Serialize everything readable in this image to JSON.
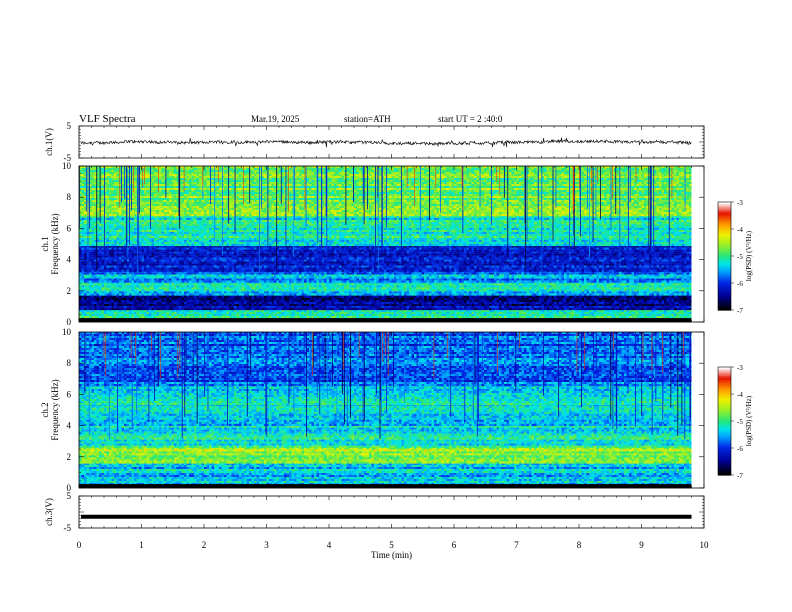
{
  "header": {
    "title": "VLF  Spectra",
    "date": "Mar.19, 2025",
    "station": "station=ATH",
    "start": "start  UT  =   2  :40:0"
  },
  "colorbar": {
    "ticks": [
      "-3",
      "-4",
      "-5",
      "-6",
      "-7"
    ],
    "label": "log(PSD) (V²/Hz)"
  },
  "chart_data": [
    {
      "type": "line",
      "panel": "ch1-waveform",
      "ylabel": "ch.1(V)",
      "yticks": [
        "5",
        "-5"
      ],
      "ylim": [
        -5,
        5
      ],
      "x_range_min": [
        0,
        9.8
      ],
      "series": [
        {
          "values_description": "noisy broadband waveform around -0.5 V with spikes reaching about ±1.5 V"
        }
      ]
    },
    {
      "type": "heatmap",
      "panel": "ch1-spectrogram",
      "ylabel_line1": "ch.1",
      "ylabel_line2": "Frequency (kHz)",
      "yticks": [
        "0",
        "2",
        "4",
        "6",
        "8",
        "10"
      ],
      "ylim": [
        0,
        10
      ],
      "xlim": [
        0,
        10
      ],
      "z_range": [
        -7,
        -3
      ],
      "bands_khz": [
        {
          "from": 0.0,
          "to": 0.25,
          "level": -7
        },
        {
          "from": 0.25,
          "to": 0.9,
          "level": -5
        },
        {
          "from": 0.9,
          "to": 1.8,
          "level": -6.4
        },
        {
          "from": 1.8,
          "to": 2.6,
          "level": -5.3
        },
        {
          "from": 2.6,
          "to": 3.3,
          "level": -5.6
        },
        {
          "from": 3.3,
          "to": 4.9,
          "level": -6.2
        },
        {
          "from": 4.9,
          "to": 6.8,
          "level": -5.2
        },
        {
          "from": 6.8,
          "to": 10.0,
          "level": -4.8
        }
      ]
    },
    {
      "type": "heatmap",
      "panel": "ch2-spectrogram",
      "ylabel_line1": "ch.2",
      "ylabel_line2": "Frequency (kHz)",
      "yticks": [
        "0",
        "2",
        "4",
        "6",
        "8",
        "10"
      ],
      "ylim": [
        0,
        10
      ],
      "xlim": [
        0,
        10
      ],
      "z_range": [
        -7,
        -3
      ],
      "bands_khz": [
        {
          "from": 0.0,
          "to": 0.25,
          "level": -7
        },
        {
          "from": 0.25,
          "to": 1.6,
          "level": -5.4
        },
        {
          "from": 1.6,
          "to": 2.6,
          "level": -4.6
        },
        {
          "from": 2.6,
          "to": 4.0,
          "level": -5.2
        },
        {
          "from": 4.0,
          "to": 5.4,
          "level": -5.4
        },
        {
          "from": 5.4,
          "to": 6.6,
          "level": -5.3
        },
        {
          "from": 6.6,
          "to": 10.0,
          "level": -5.8
        }
      ]
    },
    {
      "type": "line",
      "panel": "ch3-waveform",
      "ylabel": "ch.3(V)",
      "yticks": [
        "5",
        "-5"
      ],
      "ylim": [
        -5,
        5
      ],
      "series": [
        {
          "constant_value": -1.5,
          "x_range": [
            0,
            9.8
          ]
        }
      ]
    }
  ],
  "xaxis": {
    "label": "Time  (min)",
    "ticks": [
      "0",
      "1",
      "2",
      "3",
      "4",
      "5",
      "6",
      "7",
      "8",
      "9",
      "10"
    ],
    "xlim": [
      0,
      10
    ]
  }
}
